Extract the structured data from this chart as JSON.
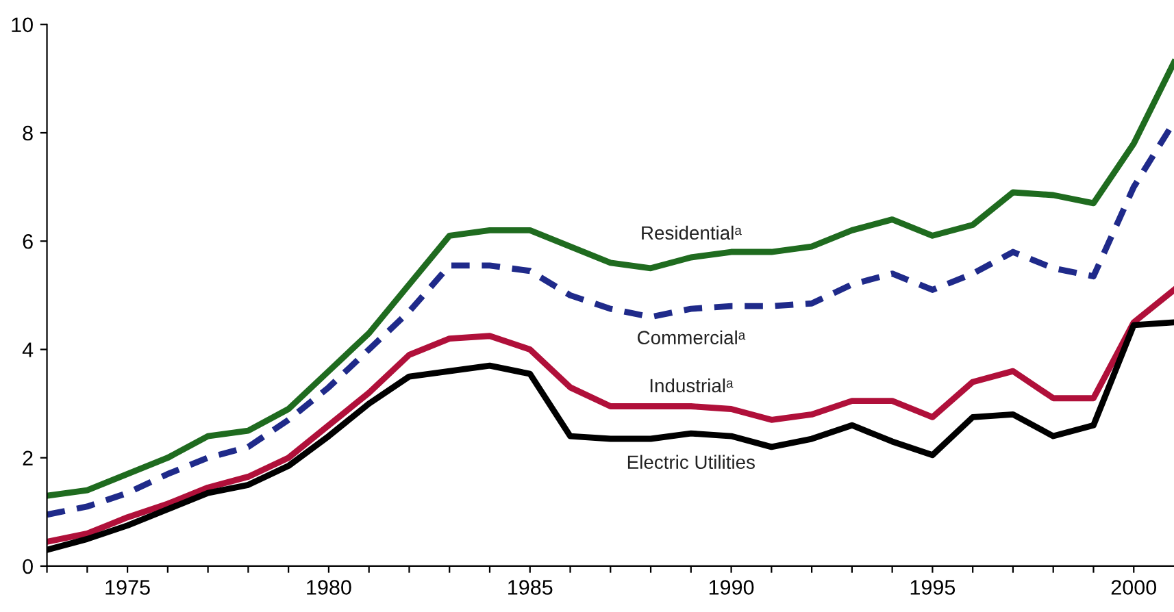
{
  "chart_data": {
    "type": "line",
    "x": [
      1973,
      1974,
      1975,
      1976,
      1977,
      1978,
      1979,
      1980,
      1981,
      1982,
      1983,
      1984,
      1985,
      1986,
      1987,
      1988,
      1989,
      1990,
      1991,
      1992,
      1993,
      1994,
      1995,
      1996,
      1997,
      1998,
      1999,
      2000,
      2001
    ],
    "series": [
      {
        "name": "Residentialᵃ",
        "color": "#1f6b1f",
        "line_style": "solid",
        "values": [
          1.3,
          1.4,
          1.7,
          2.0,
          2.4,
          2.5,
          2.9,
          3.6,
          4.3,
          5.2,
          6.1,
          6.2,
          6.2,
          5.9,
          5.6,
          5.5,
          5.7,
          5.8,
          5.8,
          5.9,
          6.2,
          6.4,
          6.1,
          6.3,
          6.9,
          6.85,
          6.7,
          7.8,
          9.3
        ]
      },
      {
        "name": "Commercialᵃ",
        "color": "#1f2a8a",
        "line_style": "dashed",
        "values": [
          0.95,
          1.1,
          1.35,
          1.7,
          2.0,
          2.2,
          2.7,
          3.3,
          4.0,
          4.7,
          5.55,
          5.55,
          5.45,
          5.0,
          4.75,
          4.6,
          4.75,
          4.8,
          4.8,
          4.85,
          5.2,
          5.4,
          5.1,
          5.4,
          5.8,
          5.5,
          5.35,
          7.0,
          8.2
        ]
      },
      {
        "name": "Industrialᵃ",
        "color": "#b0103a",
        "line_style": "solid",
        "values": [
          0.45,
          0.6,
          0.9,
          1.15,
          1.45,
          1.65,
          2.0,
          2.6,
          3.2,
          3.9,
          4.2,
          4.25,
          4.0,
          3.3,
          2.95,
          2.95,
          2.95,
          2.9,
          2.7,
          2.8,
          3.05,
          3.05,
          2.75,
          3.4,
          3.6,
          3.1,
          3.1,
          4.5,
          5.1
        ]
      },
      {
        "name": "Electric Utilities",
        "color": "#000000",
        "line_style": "solid",
        "values": [
          0.3,
          0.5,
          0.75,
          1.05,
          1.35,
          1.5,
          1.85,
          2.4,
          3.0,
          3.5,
          3.6,
          3.7,
          3.55,
          2.4,
          2.35,
          2.35,
          2.45,
          2.4,
          2.2,
          2.35,
          2.6,
          2.3,
          2.05,
          2.75,
          2.8,
          2.4,
          2.6,
          4.45,
          4.5
        ]
      }
    ],
    "xlim": [
      1973,
      2001
    ],
    "xticks": [
      {
        "value": 1973,
        "label": null
      },
      {
        "value": 1974,
        "label": null
      },
      1975,
      {
        "value": 1976,
        "label": null
      },
      {
        "value": 1977,
        "label": null
      },
      {
        "value": 1978,
        "label": null
      },
      {
        "value": 1979,
        "label": null
      },
      1980,
      {
        "value": 1981,
        "label": null
      },
      {
        "value": 1982,
        "label": null
      },
      {
        "value": 1983,
        "label": null
      },
      {
        "value": 1984,
        "label": null
      },
      1985,
      {
        "value": 1986,
        "label": null
      },
      {
        "value": 1987,
        "label": null
      },
      {
        "value": 1988,
        "label": null
      },
      {
        "value": 1989,
        "label": null
      },
      1990,
      {
        "value": 1991,
        "label": null
      },
      {
        "value": 1992,
        "label": null
      },
      {
        "value": 1993,
        "label": null
      },
      {
        "value": 1994,
        "label": null
      },
      1995,
      {
        "value": 1996,
        "label": null
      },
      {
        "value": 1997,
        "label": null
      },
      {
        "value": 1998,
        "label": null
      },
      {
        "value": 1999,
        "label": null
      },
      2000
    ],
    "ylim": [
      0,
      10
    ],
    "yticks": [
      0,
      2,
      4,
      6,
      8,
      10
    ],
    "grid": false,
    "legend": false,
    "marker": "none"
  }
}
